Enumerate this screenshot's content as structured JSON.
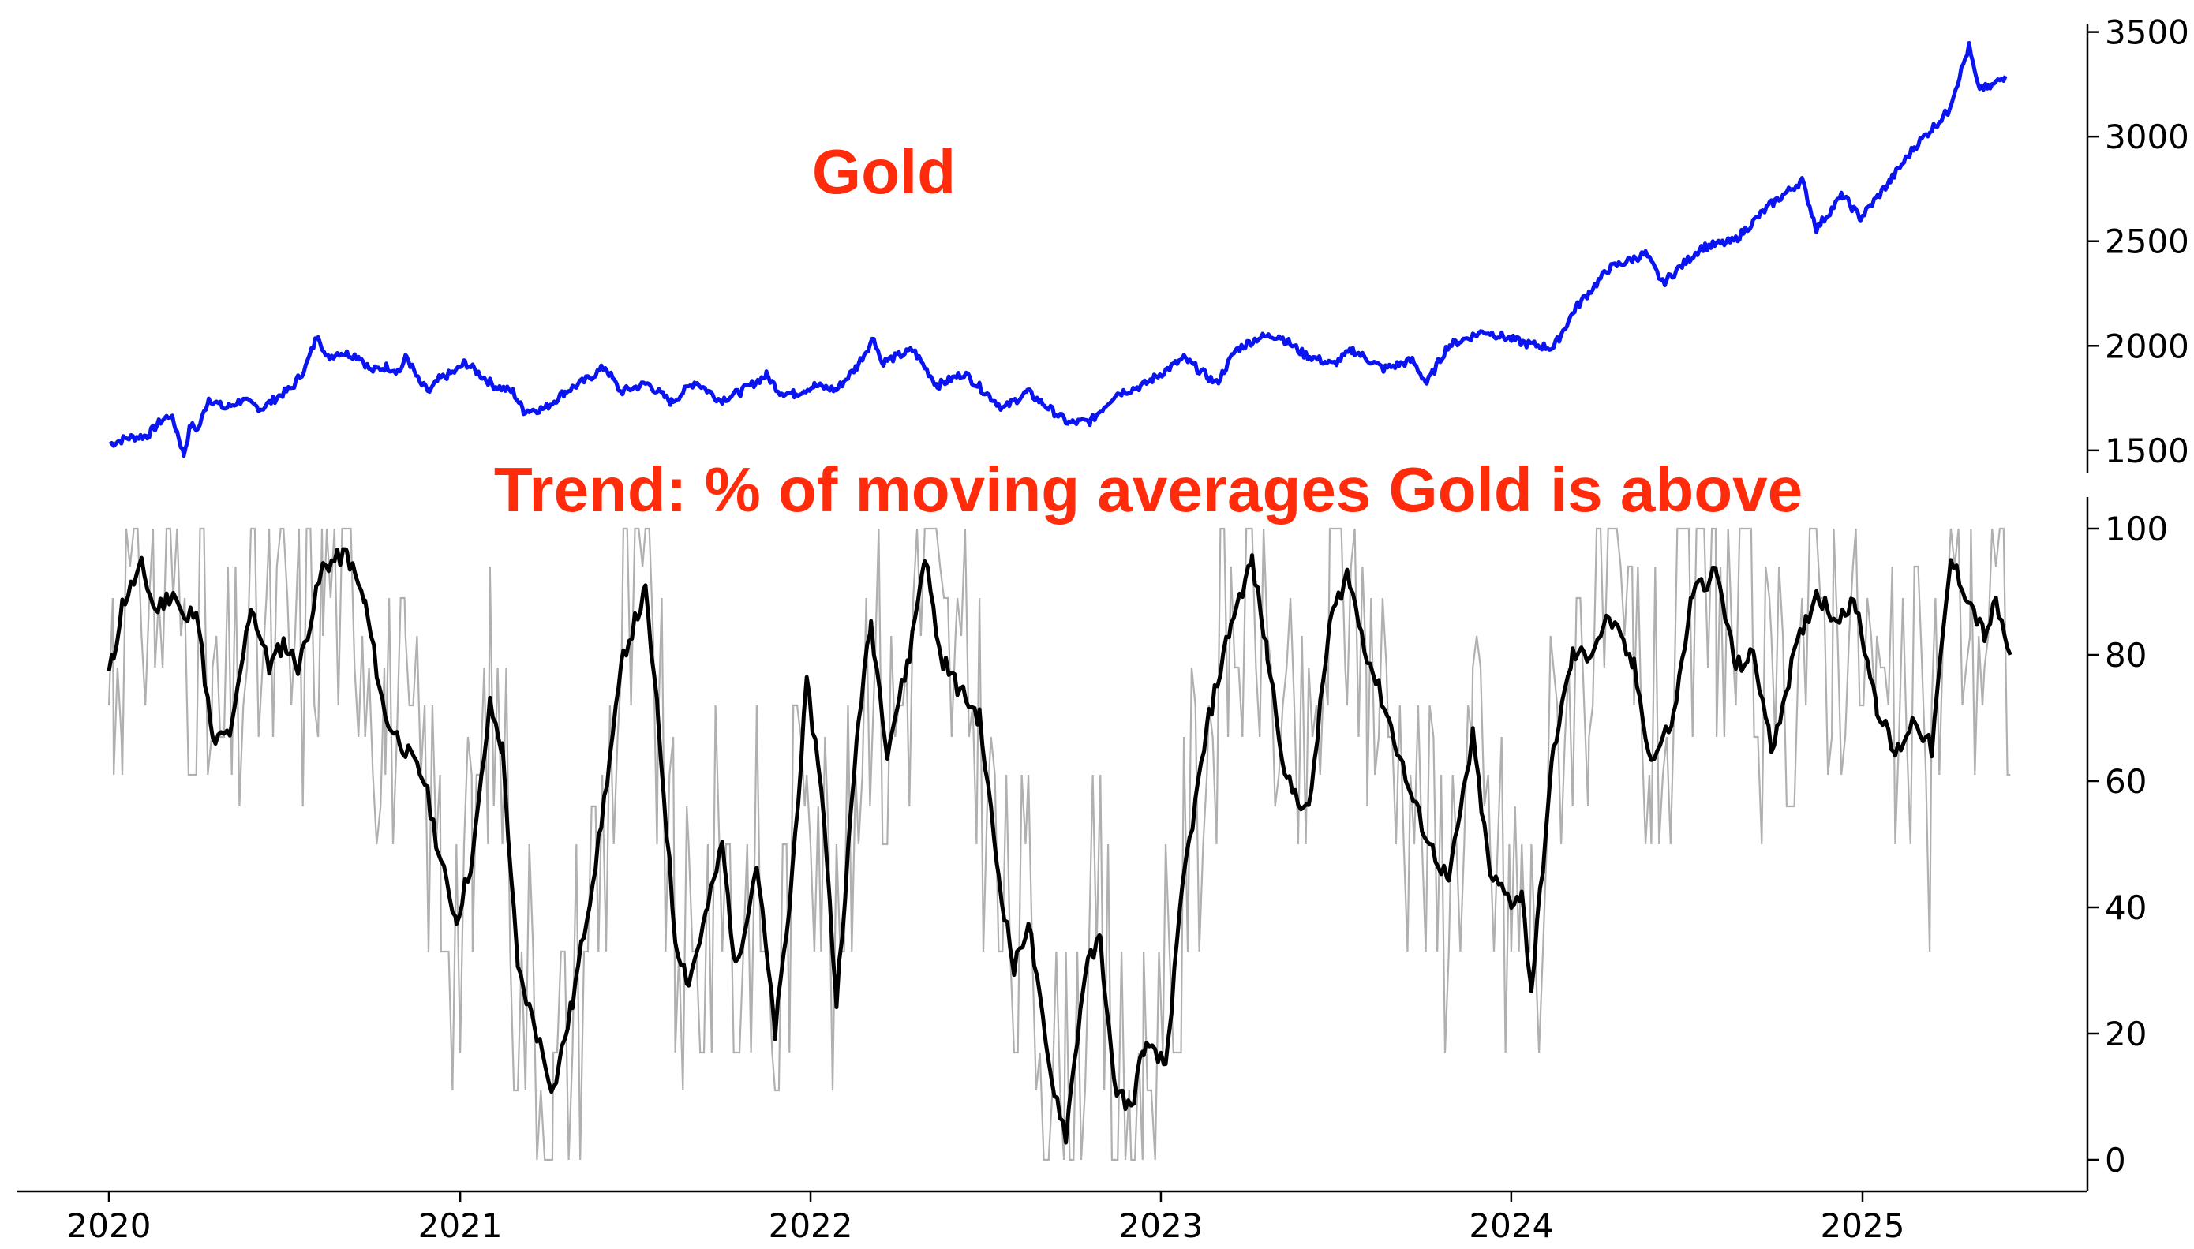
{
  "colors": {
    "gold_line": "#0a14f0",
    "trend_smoothed": "#000000",
    "trend_raw": "#b0b0b0",
    "title_text": "#ff2b0a",
    "axis": "#000000",
    "background": "#ffffff"
  },
  "chart_data": [
    {
      "type": "line",
      "panel": "top",
      "title": "Gold",
      "xlabel": "",
      "ylabel": "",
      "y_axis_side": "right",
      "grid": false,
      "x_range": [
        "2019-11-15",
        "2025-08-15"
      ],
      "ylim": [
        1390,
        3540
      ],
      "y_ticks": [
        1500,
        2000,
        2500,
        3000,
        3500
      ],
      "series": [
        {
          "color": "#0a14f0",
          "points": [
            [
              "2020-01-02",
              1530
            ],
            [
              "2020-01-20",
              1560
            ],
            [
              "2020-02-10",
              1570
            ],
            [
              "2020-02-24",
              1640
            ],
            [
              "2020-03-05",
              1670
            ],
            [
              "2020-03-12",
              1590
            ],
            [
              "2020-03-19",
              1480
            ],
            [
              "2020-03-26",
              1620
            ],
            [
              "2020-04-03",
              1600
            ],
            [
              "2020-04-14",
              1750
            ],
            [
              "2020-05-01",
              1700
            ],
            [
              "2020-05-18",
              1740
            ],
            [
              "2020-06-08",
              1700
            ],
            [
              "2020-06-26",
              1760
            ],
            [
              "2020-07-10",
              1800
            ],
            [
              "2020-07-24",
              1900
            ],
            [
              "2020-08-06",
              2060
            ],
            [
              "2020-08-14",
              1940
            ],
            [
              "2020-08-28",
              1970
            ],
            [
              "2020-09-18",
              1950
            ],
            [
              "2020-09-30",
              1880
            ],
            [
              "2020-10-16",
              1900
            ],
            [
              "2020-10-30",
              1880
            ],
            [
              "2020-11-06",
              1950
            ],
            [
              "2020-11-20",
              1820
            ],
            [
              "2020-11-30",
              1780
            ],
            [
              "2020-12-10",
              1840
            ],
            [
              "2020-12-28",
              1880
            ],
            [
              "2021-01-06",
              1920
            ],
            [
              "2021-01-20",
              1870
            ],
            [
              "2021-02-05",
              1810
            ],
            [
              "2021-02-25",
              1780
            ],
            [
              "2021-03-08",
              1690
            ],
            [
              "2021-03-30",
              1700
            ],
            [
              "2021-04-20",
              1780
            ],
            [
              "2021-05-10",
              1830
            ],
            [
              "2021-06-01",
              1900
            ],
            [
              "2021-06-17",
              1780
            ],
            [
              "2021-07-15",
              1820
            ],
            [
              "2021-08-09",
              1730
            ],
            [
              "2021-09-03",
              1830
            ],
            [
              "2021-09-29",
              1740
            ],
            [
              "2021-10-20",
              1780
            ],
            [
              "2021-11-16",
              1860
            ],
            [
              "2021-11-30",
              1780
            ],
            [
              "2021-12-15",
              1770
            ],
            [
              "2022-01-05",
              1810
            ],
            [
              "2022-01-28",
              1790
            ],
            [
              "2022-02-18",
              1900
            ],
            [
              "2022-03-08",
              2040
            ],
            [
              "2022-03-16",
              1920
            ],
            [
              "2022-04-18",
              1980
            ],
            [
              "2022-05-13",
              1810
            ],
            [
              "2022-06-10",
              1870
            ],
            [
              "2022-07-21",
              1700
            ],
            [
              "2022-08-15",
              1780
            ],
            [
              "2022-09-27",
              1630
            ],
            [
              "2022-10-20",
              1640
            ],
            [
              "2022-11-15",
              1770
            ],
            [
              "2022-12-13",
              1810
            ],
            [
              "2023-01-25",
              1940
            ],
            [
              "2023-02-28",
              1820
            ],
            [
              "2023-03-20",
              1980
            ],
            [
              "2023-04-13",
              2040
            ],
            [
              "2023-05-04",
              2050
            ],
            [
              "2023-05-30",
              1960
            ],
            [
              "2023-06-29",
              1910
            ],
            [
              "2023-07-20",
              1980
            ],
            [
              "2023-08-21",
              1890
            ],
            [
              "2023-09-20",
              1930
            ],
            [
              "2023-10-05",
              1820
            ],
            [
              "2023-10-27",
              2000
            ],
            [
              "2023-12-04",
              2070
            ],
            [
              "2024-01-17",
              2010
            ],
            [
              "2024-02-14",
              1990
            ],
            [
              "2024-03-08",
              2180
            ],
            [
              "2024-04-12",
              2370
            ],
            [
              "2024-05-20",
              2440
            ],
            [
              "2024-06-07",
              2300
            ],
            [
              "2024-07-17",
              2470
            ],
            [
              "2024-08-20",
              2500
            ],
            [
              "2024-09-26",
              2670
            ],
            [
              "2024-10-30",
              2790
            ],
            [
              "2024-11-14",
              2560
            ],
            [
              "2024-12-11",
              2720
            ],
            [
              "2024-12-30",
              2610
            ],
            [
              "2025-01-30",
              2790
            ],
            [
              "2025-02-24",
              2950
            ],
            [
              "2025-03-31",
              3120
            ],
            [
              "2025-04-22",
              3430
            ],
            [
              "2025-05-01",
              3240
            ],
            [
              "2025-05-12",
              3230
            ],
            [
              "2025-05-30",
              3290
            ]
          ]
        }
      ]
    },
    {
      "type": "line",
      "panel": "bottom",
      "title": "Trend: % of moving averages Gold is above",
      "xlabel": "",
      "ylabel": "",
      "y_axis_side": "right",
      "grid": false,
      "x_range": [
        "2019-11-15",
        "2025-08-15"
      ],
      "x_ticks": [
        "2020",
        "2021",
        "2022",
        "2023",
        "2024",
        "2025"
      ],
      "ylim": [
        -5,
        105
      ],
      "y_ticks": [
        0,
        20,
        40,
        60,
        80,
        100
      ],
      "series": [
        {
          "color": "#b0b0b0",
          "style": "raw, thin",
          "seed_note": "",
          "values_step_days": 4,
          "points_from_smoothed": true
        },
        {
          "color": "#000000",
          "style": "smoothed, thick",
          "points": [
            [
              "2020-01-01",
              77
            ],
            [
              "2020-01-06",
              80
            ],
            [
              "2020-01-15",
              88
            ],
            [
              "2020-02-04",
              94
            ],
            [
              "2020-02-18",
              87
            ],
            [
              "2020-03-08",
              90
            ],
            [
              "2020-03-20",
              85
            ],
            [
              "2020-04-01",
              88
            ],
            [
              "2020-04-18",
              66
            ],
            [
              "2020-05-08",
              68
            ],
            [
              "2020-05-28",
              88
            ],
            [
              "2020-06-16",
              78
            ],
            [
              "2020-07-01",
              82
            ],
            [
              "2020-07-17",
              78
            ],
            [
              "2020-08-11",
              94
            ],
            [
              "2020-09-05",
              96
            ],
            [
              "2020-09-24",
              88
            ],
            [
              "2020-10-15",
              70
            ],
            [
              "2020-11-05",
              65
            ],
            [
              "2020-11-25",
              60
            ],
            [
              "2020-12-12",
              47
            ],
            [
              "2020-12-28",
              38
            ],
            [
              "2021-01-14",
              48
            ],
            [
              "2021-02-01",
              72
            ],
            [
              "2021-02-14",
              65
            ],
            [
              "2021-03-02",
              30
            ],
            [
              "2021-03-22",
              20
            ],
            [
              "2021-04-08",
              11
            ],
            [
              "2021-04-28",
              25
            ],
            [
              "2021-05-25",
              50
            ],
            [
              "2021-06-20",
              80
            ],
            [
              "2021-07-13",
              90
            ],
            [
              "2021-07-26",
              70
            ],
            [
              "2021-08-13",
              35
            ],
            [
              "2021-08-27",
              28
            ],
            [
              "2021-09-16",
              40
            ],
            [
              "2021-10-01",
              50
            ],
            [
              "2021-10-15",
              30
            ],
            [
              "2021-11-06",
              47
            ],
            [
              "2021-11-25",
              20
            ],
            [
              "2021-12-10",
              40
            ],
            [
              "2021-12-28",
              75
            ],
            [
              "2022-01-12",
              60
            ],
            [
              "2022-01-28",
              25
            ],
            [
              "2022-02-20",
              70
            ],
            [
              "2022-03-05",
              85
            ],
            [
              "2022-03-22",
              65
            ],
            [
              "2022-04-14",
              80
            ],
            [
              "2022-04-30",
              96
            ],
            [
              "2022-05-16",
              80
            ],
            [
              "2022-06-03",
              75
            ],
            [
              "2022-06-26",
              70
            ],
            [
              "2022-07-16",
              45
            ],
            [
              "2022-08-01",
              30
            ],
            [
              "2022-08-16",
              38
            ],
            [
              "2022-09-06",
              15
            ],
            [
              "2022-09-24",
              4
            ],
            [
              "2022-10-14",
              30
            ],
            [
              "2022-10-30",
              35
            ],
            [
              "2022-11-13",
              12
            ],
            [
              "2022-12-01",
              8
            ],
            [
              "2022-12-14",
              18
            ],
            [
              "2023-01-06",
              15
            ],
            [
              "2023-01-25",
              45
            ],
            [
              "2023-02-20",
              70
            ],
            [
              "2023-03-15",
              85
            ],
            [
              "2023-04-06",
              95
            ],
            [
              "2023-04-22",
              80
            ],
            [
              "2023-05-12",
              60
            ],
            [
              "2023-06-04",
              55
            ],
            [
              "2023-06-26",
              85
            ],
            [
              "2023-07-14",
              93
            ],
            [
              "2023-08-04",
              80
            ],
            [
              "2023-08-26",
              70
            ],
            [
              "2023-09-18",
              58
            ],
            [
              "2023-10-08",
              50
            ],
            [
              "2023-10-28",
              44
            ],
            [
              "2023-11-22",
              67
            ],
            [
              "2023-12-10",
              45
            ],
            [
              "2024-01-01",
              41
            ],
            [
              "2024-01-12",
              42
            ],
            [
              "2024-01-22",
              27
            ],
            [
              "2024-02-14",
              65
            ],
            [
              "2024-03-05",
              80
            ],
            [
              "2024-03-22",
              80
            ],
            [
              "2024-04-12",
              86
            ],
            [
              "2024-05-08",
              78
            ],
            [
              "2024-05-26",
              63
            ],
            [
              "2024-06-18",
              70
            ],
            [
              "2024-07-08",
              90
            ],
            [
              "2024-08-02",
              93
            ],
            [
              "2024-08-22",
              78
            ],
            [
              "2024-09-10",
              80
            ],
            [
              "2024-09-28",
              65
            ],
            [
              "2024-10-22",
              80
            ],
            [
              "2024-11-14",
              90
            ],
            [
              "2024-12-02",
              86
            ],
            [
              "2024-12-25",
              88
            ],
            [
              "2025-01-16",
              72
            ],
            [
              "2025-02-04",
              64
            ],
            [
              "2025-02-24",
              70
            ],
            [
              "2025-03-14",
              65
            ],
            [
              "2025-04-03",
              95
            ],
            [
              "2025-04-24",
              88
            ],
            [
              "2025-05-08",
              83
            ],
            [
              "2025-05-20",
              88
            ],
            [
              "2025-06-04",
              80
            ]
          ]
        }
      ]
    }
  ]
}
